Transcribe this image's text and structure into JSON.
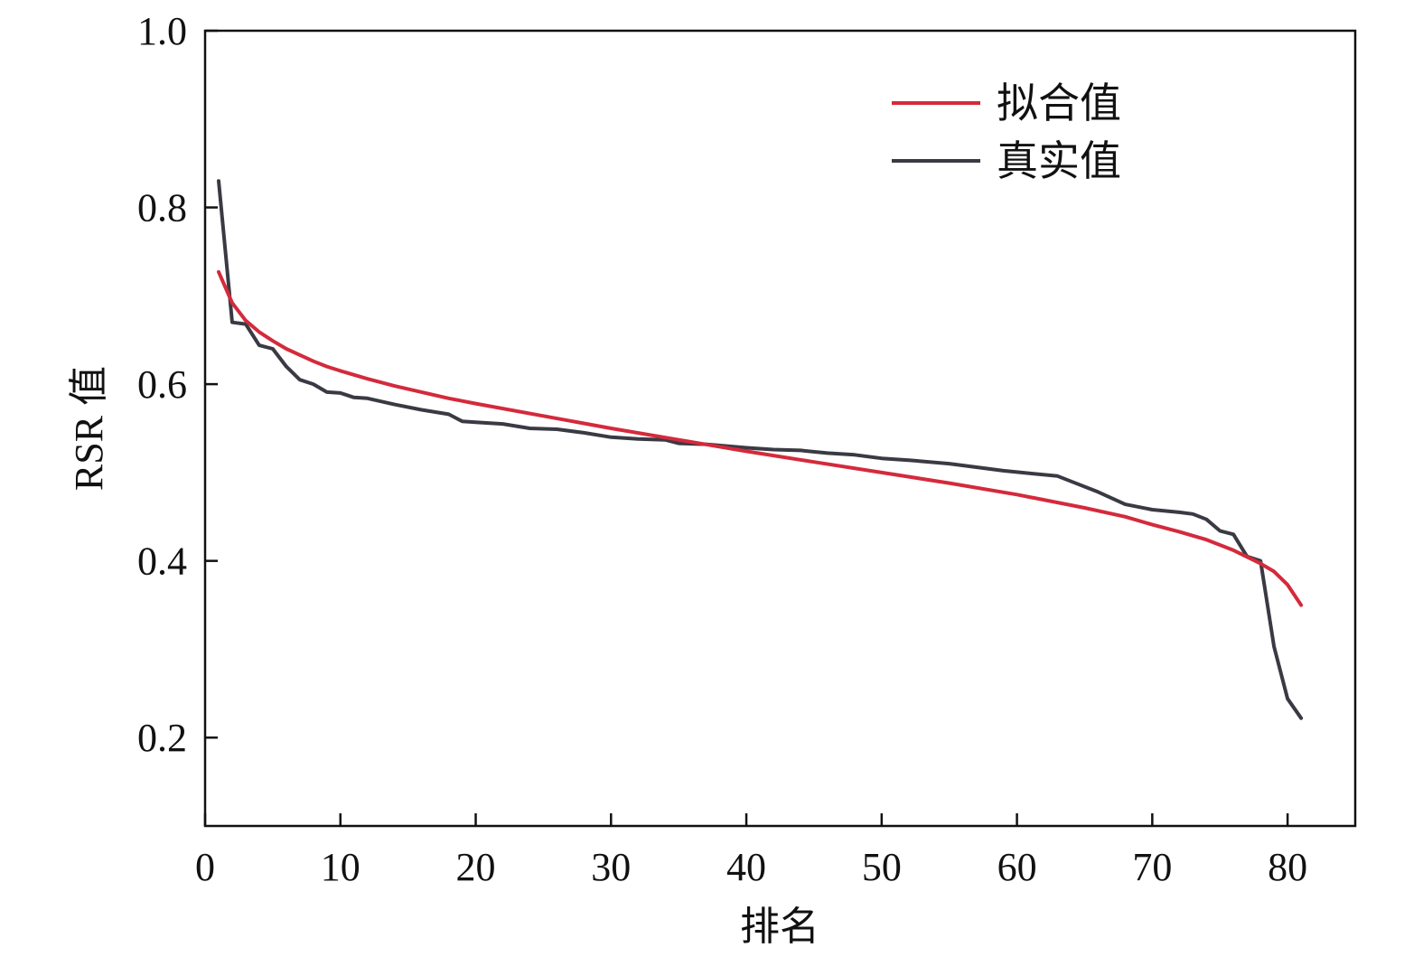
{
  "chart_data": {
    "type": "line",
    "title": "",
    "xlabel": "排名",
    "ylabel": "RSR 值",
    "xlim": [
      0,
      85
    ],
    "ylim": [
      0.1,
      1.0
    ],
    "xticks": [
      0,
      10,
      20,
      30,
      40,
      50,
      60,
      70,
      80
    ],
    "xtick_labels": [
      "0",
      "10",
      "20",
      "30",
      "40",
      "50",
      "60",
      "70",
      "80"
    ],
    "yticks": [
      0.2,
      0.4,
      0.6,
      0.8,
      1.0
    ],
    "ytick_labels": [
      "0.2",
      "0.4",
      "0.6",
      "0.8",
      "1.0"
    ],
    "grid": false,
    "legend_position": "top-right",
    "series": [
      {
        "name": "拟合值",
        "color": "#d42a3c",
        "points": [
          [
            1,
            0.727
          ],
          [
            2,
            0.692
          ],
          [
            3,
            0.672
          ],
          [
            4,
            0.659
          ],
          [
            5,
            0.649
          ],
          [
            6,
            0.64
          ],
          [
            7,
            0.633
          ],
          [
            8,
            0.626
          ],
          [
            9,
            0.62
          ],
          [
            10,
            0.615
          ],
          [
            12,
            0.606
          ],
          [
            14,
            0.598
          ],
          [
            16,
            0.591
          ],
          [
            18,
            0.584
          ],
          [
            20,
            0.578
          ],
          [
            25,
            0.564
          ],
          [
            30,
            0.55
          ],
          [
            35,
            0.537
          ],
          [
            40,
            0.524
          ],
          [
            45,
            0.512
          ],
          [
            50,
            0.5
          ],
          [
            55,
            0.488
          ],
          [
            60,
            0.475
          ],
          [
            65,
            0.46
          ],
          [
            68,
            0.45
          ],
          [
            70,
            0.441
          ],
          [
            72,
            0.433
          ],
          [
            74,
            0.424
          ],
          [
            76,
            0.412
          ],
          [
            78,
            0.397
          ],
          [
            79,
            0.388
          ],
          [
            80,
            0.373
          ],
          [
            81,
            0.35
          ]
        ]
      },
      {
        "name": "真实值",
        "color": "#3a3a44",
        "points": [
          [
            1,
            0.83
          ],
          [
            2,
            0.67
          ],
          [
            3,
            0.668
          ],
          [
            4,
            0.644
          ],
          [
            5,
            0.64
          ],
          [
            6,
            0.62
          ],
          [
            7,
            0.605
          ],
          [
            8,
            0.6
          ],
          [
            9,
            0.591
          ],
          [
            10,
            0.59
          ],
          [
            11,
            0.585
          ],
          [
            12,
            0.584
          ],
          [
            14,
            0.577
          ],
          [
            16,
            0.571
          ],
          [
            18,
            0.566
          ],
          [
            19,
            0.558
          ],
          [
            20,
            0.557
          ],
          [
            22,
            0.555
          ],
          [
            24,
            0.55
          ],
          [
            26,
            0.549
          ],
          [
            28,
            0.545
          ],
          [
            30,
            0.54
          ],
          [
            32,
            0.538
          ],
          [
            34,
            0.537
          ],
          [
            35,
            0.533
          ],
          [
            37,
            0.532
          ],
          [
            40,
            0.528
          ],
          [
            42,
            0.526
          ],
          [
            44,
            0.525
          ],
          [
            46,
            0.522
          ],
          [
            48,
            0.52
          ],
          [
            50,
            0.516
          ],
          [
            52,
            0.514
          ],
          [
            55,
            0.51
          ],
          [
            57,
            0.506
          ],
          [
            59,
            0.502
          ],
          [
            61,
            0.499
          ],
          [
            63,
            0.496
          ],
          [
            64,
            0.49
          ],
          [
            66,
            0.478
          ],
          [
            68,
            0.464
          ],
          [
            70,
            0.458
          ],
          [
            72,
            0.455
          ],
          [
            73,
            0.453
          ],
          [
            74,
            0.447
          ],
          [
            75,
            0.434
          ],
          [
            76,
            0.43
          ],
          [
            77,
            0.405
          ],
          [
            78,
            0.4
          ],
          [
            79,
            0.303
          ],
          [
            80,
            0.244
          ],
          [
            81,
            0.222
          ]
        ]
      }
    ]
  }
}
